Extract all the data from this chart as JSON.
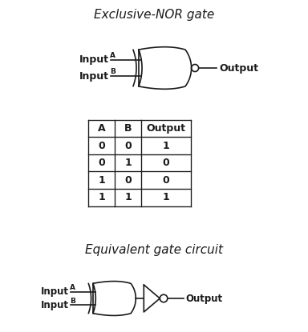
{
  "title1": "Exclusive-NOR gate",
  "title2": "Equivalent gate circuit",
  "table_headers": [
    "A",
    "B",
    "Output"
  ],
  "table_data": [
    [
      "0",
      "0",
      "1"
    ],
    [
      "0",
      "1",
      "0"
    ],
    [
      "1",
      "0",
      "0"
    ],
    [
      "1",
      "1",
      "1"
    ]
  ],
  "bg_color": "#ffffff",
  "line_color": "#1a1a1a",
  "text_color": "#1a1a1a",
  "font_size_title": 11,
  "font_size_label": 9,
  "font_size_sub": 6.5,
  "font_size_table": 9
}
